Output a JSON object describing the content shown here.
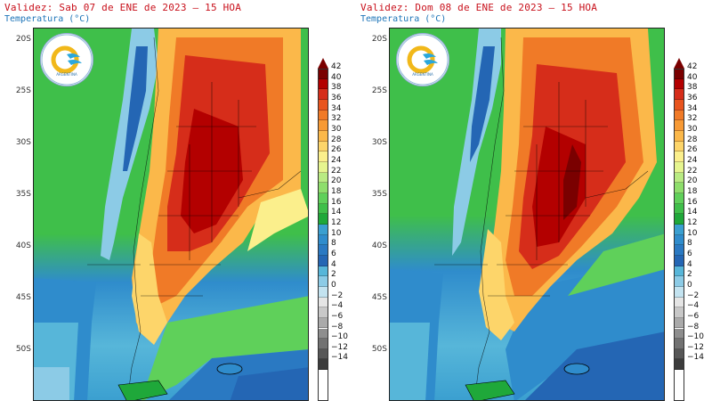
{
  "panels": [
    {
      "title": "Validez: Sab 07 de ENE de 2023 — 15 HOA",
      "subtitle": "Temperatura (°C)",
      "logo_text": "ARGENTINA",
      "lat_labels": [
        "20S",
        "25S",
        "30S",
        "35S",
        "40S",
        "45S",
        "50S"
      ]
    },
    {
      "title": "Validez: Dom 08 de ENE de 2023 — 15 HOA",
      "subtitle": "Temperatura (°C)",
      "logo_text": "ARGENTINA",
      "lat_labels": [
        "20S",
        "25S",
        "30S",
        "35S",
        "40S",
        "45S",
        "50S"
      ]
    }
  ],
  "colorbar": {
    "labels": [
      "42",
      "40",
      "38",
      "36",
      "34",
      "32",
      "30",
      "28",
      "26",
      "24",
      "22",
      "20",
      "18",
      "16",
      "14",
      "12",
      "10",
      "8",
      "6",
      "4",
      "2",
      "0",
      "−2",
      "−4",
      "−6",
      "−8",
      "−10",
      "−12",
      "−14"
    ],
    "colors": [
      "#7a0000",
      "#b30000",
      "#d62d1a",
      "#e8541e",
      "#f07a27",
      "#f79a35",
      "#fbb84a",
      "#fdd56a",
      "#fbef8c",
      "#e6f58f",
      "#b9eb83",
      "#8ede6c",
      "#5fd05a",
      "#3fbf4a",
      "#1fa83a",
      "#3a9fd0",
      "#2f8ccc",
      "#2a79c2",
      "#2466b4",
      "#57b6d9",
      "#8ccbe6",
      "#c3e3f0",
      "#e5e5e5",
      "#c8c8c8",
      "#aaaaaa",
      "#8e8e8e",
      "#727272",
      "#575757",
      "#3c3c3c"
    ]
  }
}
